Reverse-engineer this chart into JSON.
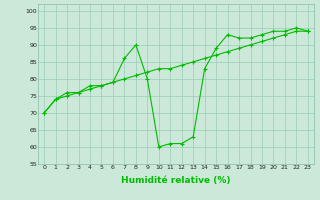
{
  "line1_x": [
    0,
    1,
    2,
    3,
    4,
    5,
    6,
    7,
    8,
    9,
    10,
    11,
    12,
    13,
    14,
    15,
    16,
    17,
    18,
    19,
    20,
    21,
    22,
    23
  ],
  "line1_y": [
    70,
    74,
    76,
    76,
    78,
    78,
    79,
    86,
    90,
    80,
    60,
    61,
    61,
    63,
    83,
    89,
    93,
    92,
    92,
    93,
    94,
    94,
    95,
    94
  ],
  "line2_x": [
    0,
    1,
    2,
    3,
    4,
    5,
    6,
    7,
    8,
    9,
    10,
    11,
    12,
    13,
    14,
    15,
    16,
    17,
    18,
    19,
    20,
    21,
    22,
    23
  ],
  "line2_y": [
    70,
    74,
    75,
    76,
    77,
    78,
    79,
    80,
    81,
    82,
    83,
    83,
    84,
    85,
    86,
    87,
    88,
    89,
    90,
    91,
    92,
    93,
    94,
    94
  ],
  "line_color": "#00bb00",
  "bg_color": "#cce8d8",
  "grid_color": "#99ccbb",
  "xlabel": "Humidité relative (%)",
  "xlim": [
    -0.5,
    23.5
  ],
  "ylim": [
    55,
    102
  ],
  "yticks": [
    55,
    60,
    65,
    70,
    75,
    80,
    85,
    90,
    95,
    100
  ],
  "xticks": [
    0,
    1,
    2,
    3,
    4,
    5,
    6,
    7,
    8,
    9,
    10,
    11,
    12,
    13,
    14,
    15,
    16,
    17,
    18,
    19,
    20,
    21,
    22,
    23
  ]
}
